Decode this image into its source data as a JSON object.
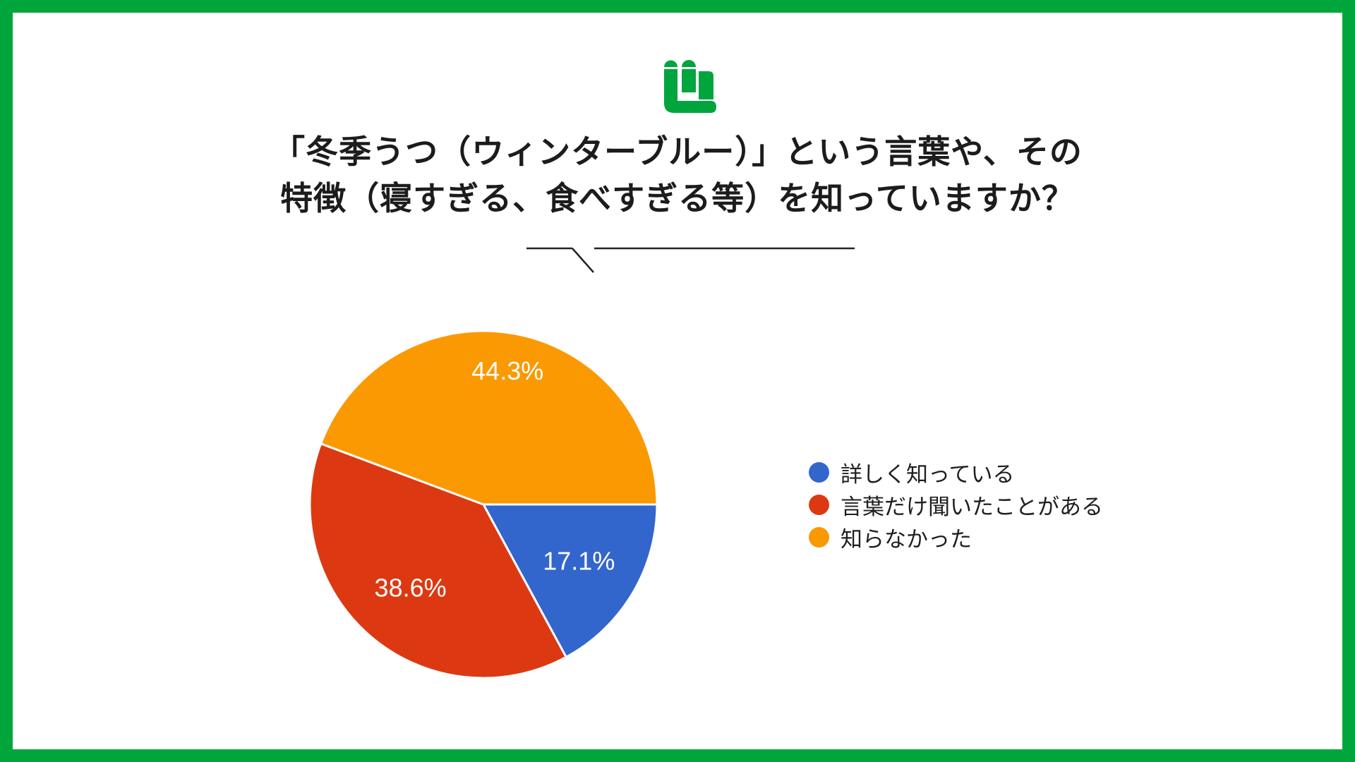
{
  "frame": {
    "border_color": "#00A63C",
    "background": "#FFFFFF"
  },
  "logo": {
    "name": "brand-logo",
    "color": "#00A53E"
  },
  "title": {
    "line1": "「冬季うつ（ウィンターブルー）」という言葉や、その",
    "line2": "特徴（寝すぎる、食べすぎる等）を知っていますか？",
    "color": "#1C1C1C"
  },
  "divider": {
    "color": "#222222"
  },
  "chart_data": {
    "type": "pie",
    "title": "「冬季うつ（ウィンターブルー）」という言葉や、その特徴（寝すぎる、食べすぎる等）を知っていますか？",
    "legend_position": "right",
    "label_color": "#FFFFFF",
    "slice_border_color": "#FFFFFF",
    "start_angle_clockwise_from_east_deg": 0,
    "slices": [
      {
        "label": "詳しく知っている",
        "value": 17.1,
        "display": "17.1%",
        "color": "#3366CC",
        "label_radius_frac": 0.64
      },
      {
        "label": "言葉だけ聞いたことがある",
        "value": 38.6,
        "display": "38.6%",
        "color": "#DC3912",
        "label_radius_frac": 0.64
      },
      {
        "label": "知らなかった",
        "value": 44.3,
        "display": "44.3%",
        "color": "#FB9902",
        "label_radius_frac": 0.78
      }
    ]
  },
  "legend": {
    "items": [
      {
        "label": "詳しく知っている",
        "color": "#3366CC"
      },
      {
        "label": "言葉だけ聞いたことがある",
        "color": "#DC3912"
      },
      {
        "label": "知らなかった",
        "color": "#FB9902"
      }
    ]
  }
}
